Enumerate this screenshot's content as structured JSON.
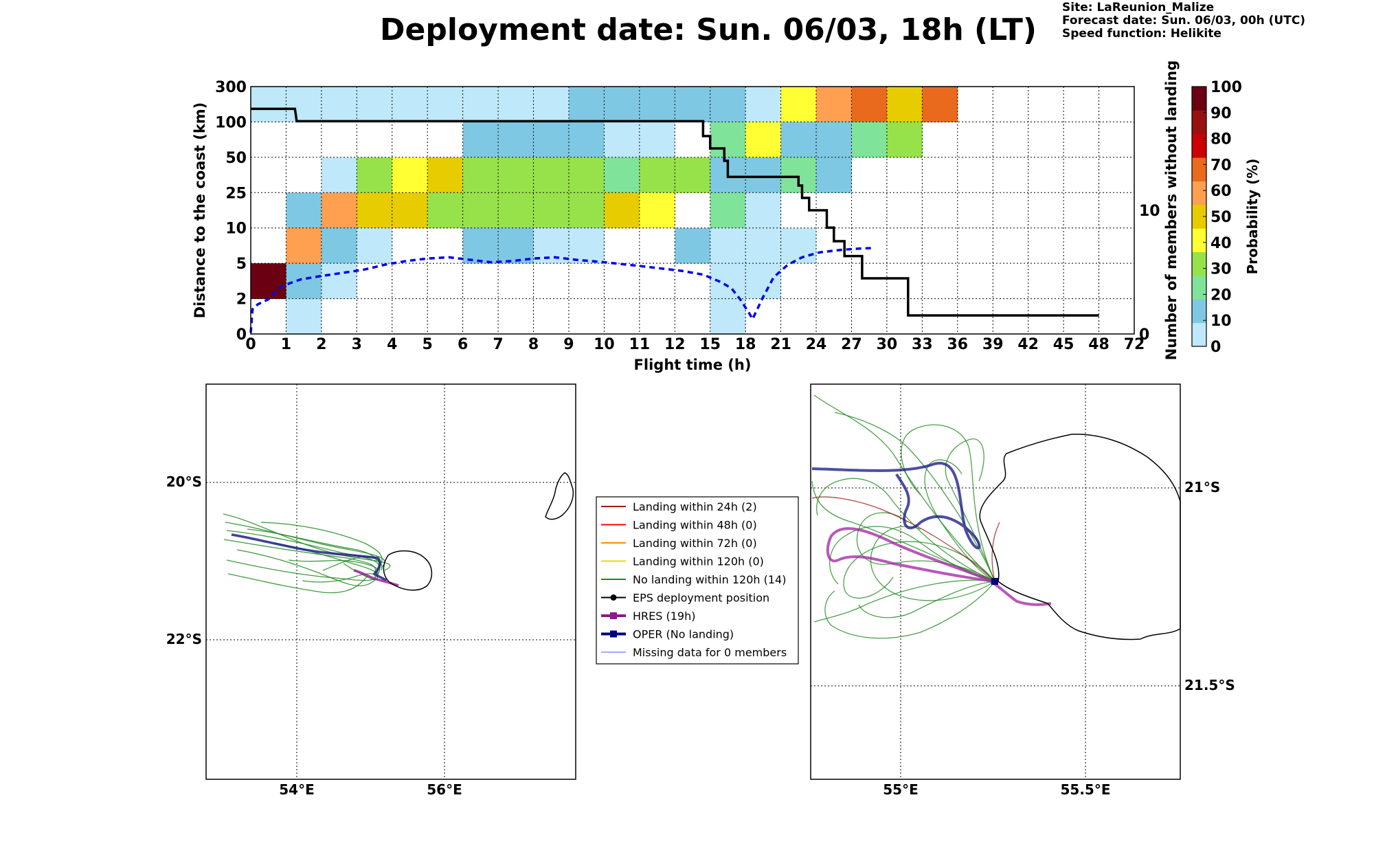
{
  "title": "Deployment date: Sun. 06/03, 18h (LT)",
  "site_info": {
    "site": "Site: LaReunion_Malize",
    "forecast": "Forecast date: Sun. 06/03, 00h (UTC)",
    "speed": "Speed function: Helikite"
  },
  "chart_data": [
    {
      "type": "heatmap",
      "xlabel": "Flight time (h)",
      "ylabel": "Distance to the coast (km)",
      "y2label": "Number of members without landing",
      "x_ticks": [
        "0",
        "1",
        "2",
        "3",
        "4",
        "5",
        "6",
        "7",
        "8",
        "9",
        "10",
        "11",
        "12",
        "15",
        "18",
        "21",
        "24",
        "27",
        "30",
        "33",
        "36",
        "39",
        "42",
        "45",
        "48",
        "72"
      ],
      "y_ticks": [
        "0",
        "2",
        "5",
        "10",
        "25",
        "50",
        "100",
        "300"
      ],
      "y2_ticks": [
        {
          "value": 0,
          "label": "0"
        },
        {
          "value": 10,
          "label": "10"
        }
      ],
      "y2_range": [
        0,
        20
      ],
      "grid": true,
      "colorbar": {
        "label": "Probability (%)",
        "ticks": [
          "0",
          "10",
          "20",
          "30",
          "40",
          "50",
          "60",
          "70",
          "80",
          "90",
          "100"
        ],
        "colors": [
          "#bfe8fa",
          "#7fc8e3",
          "#80e39a",
          "#97e24a",
          "#ffff33",
          "#e6cc00",
          "#ff9f50",
          "#e96a1d",
          "#cc0000",
          "#991010",
          "#6b0012"
        ]
      },
      "cells": [
        [
          0,
          0,
          0,
          0,
          0,
          0,
          0,
          0,
          0,
          1,
          1,
          1,
          1,
          1,
          0,
          4,
          6,
          7,
          5,
          7,
          -1,
          -1,
          -1,
          -1,
          -1
        ],
        [
          -1,
          -1,
          -1,
          -1,
          -1,
          -1,
          1,
          1,
          1,
          1,
          0,
          0,
          -1,
          2,
          4,
          1,
          1,
          2,
          3,
          -1,
          -1,
          -1,
          -1,
          -1,
          -1
        ],
        [
          -1,
          -1,
          0,
          3,
          4,
          5,
          3,
          3,
          3,
          3,
          2,
          3,
          3,
          1,
          1,
          2,
          1,
          -1,
          -1,
          -1,
          -1,
          -1,
          -1,
          -1,
          -1
        ],
        [
          -1,
          1,
          6,
          5,
          5,
          3,
          3,
          3,
          3,
          3,
          5,
          4,
          -1,
          2,
          0,
          -1,
          -1,
          -1,
          -1,
          -1,
          -1,
          -1,
          -1,
          -1,
          -1
        ],
        [
          -1,
          6,
          1,
          0,
          -1,
          -1,
          1,
          1,
          0,
          0,
          -1,
          -1,
          1,
          0,
          0,
          0,
          -1,
          -1,
          -1,
          -1,
          -1,
          -1,
          -1,
          -1,
          -1
        ],
        [
          10,
          1,
          0,
          -1,
          -1,
          -1,
          -1,
          -1,
          -1,
          -1,
          -1,
          -1,
          -1,
          0,
          0,
          -1,
          -1,
          -1,
          -1,
          -1,
          -1,
          -1,
          -1,
          -1,
          -1
        ],
        [
          -1,
          0,
          -1,
          -1,
          -1,
          -1,
          -1,
          -1,
          -1,
          -1,
          -1,
          -1,
          -1,
          0,
          -1,
          -1,
          -1,
          -1,
          -1,
          -1,
          -1,
          -1,
          -1,
          -1,
          -1
        ]
      ],
      "series": [
        {
          "style": "black-step",
          "points": [
            [
              0,
              18.2
            ],
            [
              1.25,
              18.2
            ],
            [
              1.3,
              17.2
            ],
            [
              12.8,
              17.2
            ],
            [
              12.8,
              16
            ],
            [
              13,
              16
            ],
            [
              13,
              15
            ],
            [
              13.4,
              15
            ],
            [
              13.4,
              14
            ],
            [
              13.5,
              14
            ],
            [
              13.5,
              12.7
            ],
            [
              15.5,
              12.7
            ],
            [
              15.5,
              12
            ],
            [
              15.6,
              12
            ],
            [
              15.6,
              11
            ],
            [
              15.8,
              11
            ],
            [
              15.8,
              10
            ],
            [
              16.3,
              10
            ],
            [
              16.3,
              8.6
            ],
            [
              16.5,
              8.6
            ],
            [
              16.5,
              7.5
            ],
            [
              16.8,
              7.5
            ],
            [
              16.8,
              6.3
            ],
            [
              17.3,
              6.3
            ],
            [
              17.3,
              4.5
            ],
            [
              18.6,
              4.5
            ],
            [
              18.6,
              1.5
            ],
            [
              24,
              1.5
            ]
          ]
        },
        {
          "style": "blue-dashed",
          "points": [
            [
              0,
              0.1
            ],
            [
              0.05,
              2.0
            ],
            [
              0.2,
              2.4
            ],
            [
              0.5,
              2.8
            ],
            [
              0.8,
              3.7
            ],
            [
              1.1,
              4.1
            ],
            [
              1.4,
              4.4
            ],
            [
              1.8,
              4.6
            ],
            [
              2.5,
              4.9
            ],
            [
              3.2,
              5.2
            ],
            [
              3.8,
              5.6
            ],
            [
              4.4,
              5.9
            ],
            [
              5.0,
              6.1
            ],
            [
              5.6,
              6.2
            ],
            [
              6.2,
              6.0
            ],
            [
              6.8,
              5.8
            ],
            [
              7.4,
              5.9
            ],
            [
              8.0,
              6.1
            ],
            [
              8.6,
              6.2
            ],
            [
              9.2,
              6.0
            ],
            [
              10.0,
              5.8
            ],
            [
              11.0,
              5.5
            ],
            [
              12.2,
              5.1
            ],
            [
              12.8,
              4.8
            ],
            [
              13.3,
              4.2
            ],
            [
              13.6,
              3.7
            ],
            [
              13.85,
              2.8
            ],
            [
              14.1,
              1.7
            ],
            [
              14.2,
              1.2
            ],
            [
              14.5,
              3.0
            ],
            [
              14.8,
              4.6
            ],
            [
              15.2,
              5.6
            ],
            [
              15.6,
              6.2
            ],
            [
              16.1,
              6.6
            ],
            [
              16.7,
              6.8
            ],
            [
              17.2,
              6.9
            ],
            [
              17.6,
              6.95
            ]
          ]
        }
      ]
    },
    {
      "type": "map",
      "lat_ticks": [
        "20°S",
        "22°S"
      ],
      "lon_ticks": [
        "54°E",
        "56°E"
      ]
    },
    {
      "type": "map",
      "lat_ticks": [
        "21°S",
        "21.5°S"
      ],
      "lon_ticks": [
        "55°E",
        "55.5°E"
      ]
    }
  ],
  "legend": [
    {
      "label": "Landing within 24h (2)",
      "color": "#9b1c1c",
      "marker": "none",
      "width": 2
    },
    {
      "label": "Landing within 48h (0)",
      "color": "#ff0000",
      "marker": "none",
      "width": 2
    },
    {
      "label": "Landing within 72h (0)",
      "color": "#ff8c00",
      "marker": "none",
      "width": 2
    },
    {
      "label": "Landing within 120h (0)",
      "color": "#f2d600",
      "marker": "none",
      "width": 2
    },
    {
      "label": "No landing within 120h (14)",
      "color": "#1e8a1e",
      "marker": "none",
      "width": 2
    },
    {
      "label": "EPS deployment position",
      "color": "#000000",
      "marker": "circle",
      "width": 2
    },
    {
      "label": "HRES (19h)",
      "color": "#8b1a8b",
      "marker": "square",
      "width": 4
    },
    {
      "label": "OPER (No landing)",
      "color": "#000080",
      "marker": "square",
      "width": 4
    },
    {
      "label": "Missing data for 0 members",
      "color": "#4f4fff",
      "marker": "none",
      "width": 1
    }
  ]
}
